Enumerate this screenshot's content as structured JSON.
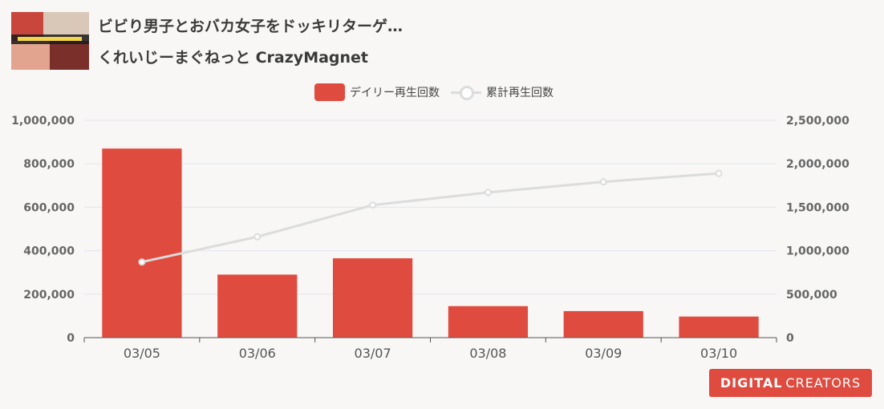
{
  "video": {
    "title": "ビビり男子とおバカ女子をドッキリターゲ…",
    "channel": "くれいじーまぐねっと CrazyMagnet"
  },
  "legend": {
    "daily": "デイリー再生回数",
    "total": "累計再生回数"
  },
  "logo": {
    "part1": "DIGITAL",
    "part2": "CREATORS"
  },
  "colors": {
    "bar": "#e04b3f",
    "line": "#dcdcdc",
    "grid": "#e3e6ef",
    "axis": "#666666"
  },
  "chart_data": {
    "type": "bar",
    "categories": [
      "03/05",
      "03/06",
      "03/07",
      "03/08",
      "03/09",
      "03/10"
    ],
    "series": [
      {
        "name": "デイリー再生回数",
        "type": "bar",
        "axis": "left",
        "values": [
          870000,
          290000,
          365000,
          145000,
          122000,
          97000
        ]
      },
      {
        "name": "累計再生回数",
        "type": "line",
        "axis": "right",
        "values": [
          870000,
          1160000,
          1525000,
          1670000,
          1792000,
          1889000
        ]
      }
    ],
    "y_left": {
      "min": 0,
      "max": 1000000,
      "ticks": [
        "0",
        "200,000",
        "400,000",
        "600,000",
        "800,000",
        "1,000,000"
      ]
    },
    "y_right": {
      "min": 0,
      "max": 2500000,
      "ticks": [
        "0",
        "500,000",
        "1,000,000",
        "1,500,000",
        "2,000,000",
        "2,500,000"
      ]
    },
    "grid": true,
    "legend_position": "top-center"
  }
}
